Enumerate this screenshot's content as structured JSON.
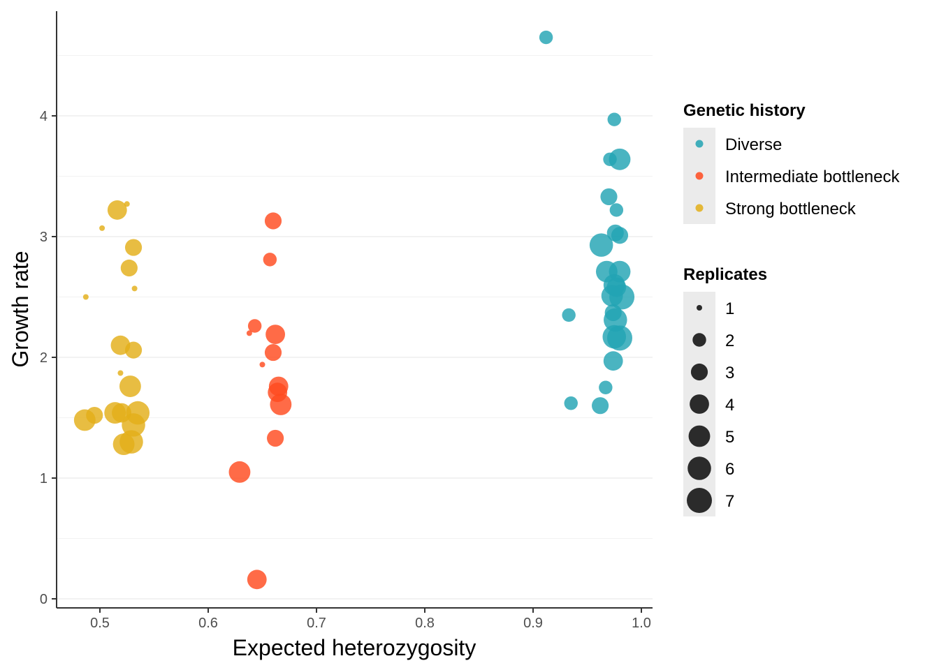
{
  "chart_data": {
    "type": "scatter",
    "xlabel": "Expected heterozygosity",
    "ylabel": "Growth rate",
    "xlim": [
      0.46,
      1.01
    ],
    "ylim": [
      -0.07,
      4.78
    ],
    "xticks": [
      "0.5",
      "0.6",
      "0.7",
      "0.8",
      "0.9",
      "1.0"
    ],
    "yticks": [
      "0",
      "1",
      "2",
      "3",
      "4"
    ],
    "grid": "horizontal major and minor",
    "legend_position": "right",
    "legends": {
      "color": {
        "title": "Genetic history",
        "entries": [
          "Diverse",
          "Intermediate bottleneck",
          "Strong bottleneck"
        ]
      },
      "size": {
        "title": "Replicates",
        "entries": [
          "1",
          "2",
          "3",
          "4",
          "5",
          "6",
          "7"
        ]
      }
    },
    "series": [
      {
        "name": "Diverse",
        "color": "#22A3B3",
        "points": [
          {
            "x": 0.912,
            "y": 4.65,
            "size": 2
          },
          {
            "x": 0.975,
            "y": 3.97,
            "size": 2
          },
          {
            "x": 0.971,
            "y": 3.64,
            "size": 2
          },
          {
            "x": 0.98,
            "y": 3.64,
            "size": 5
          },
          {
            "x": 0.97,
            "y": 3.33,
            "size": 3
          },
          {
            "x": 0.977,
            "y": 3.22,
            "size": 2
          },
          {
            "x": 0.976,
            "y": 3.03,
            "size": 3
          },
          {
            "x": 0.98,
            "y": 3.01,
            "size": 3
          },
          {
            "x": 0.963,
            "y": 2.93,
            "size": 6
          },
          {
            "x": 0.968,
            "y": 2.71,
            "size": 5
          },
          {
            "x": 0.98,
            "y": 2.71,
            "size": 5
          },
          {
            "x": 0.975,
            "y": 2.6,
            "size": 5
          },
          {
            "x": 0.977,
            "y": 2.58,
            "size": 4
          },
          {
            "x": 0.973,
            "y": 2.51,
            "size": 5
          },
          {
            "x": 0.982,
            "y": 2.5,
            "size": 7
          },
          {
            "x": 0.974,
            "y": 2.37,
            "size": 3
          },
          {
            "x": 0.933,
            "y": 2.35,
            "size": 2
          },
          {
            "x": 0.976,
            "y": 2.31,
            "size": 6
          },
          {
            "x": 0.975,
            "y": 2.17,
            "size": 6
          },
          {
            "x": 0.98,
            "y": 2.16,
            "size": 7
          },
          {
            "x": 0.974,
            "y": 1.97,
            "size": 4
          },
          {
            "x": 0.967,
            "y": 1.75,
            "size": 2
          },
          {
            "x": 0.935,
            "y": 1.62,
            "size": 2
          },
          {
            "x": 0.962,
            "y": 1.6,
            "size": 3
          }
        ]
      },
      {
        "name": "Intermediate bottleneck",
        "color": "#FF4A1F",
        "points": [
          {
            "x": 0.66,
            "y": 3.13,
            "size": 3
          },
          {
            "x": 0.657,
            "y": 2.81,
            "size": 2
          },
          {
            "x": 0.643,
            "y": 2.26,
            "size": 2
          },
          {
            "x": 0.638,
            "y": 2.2,
            "size": 1
          },
          {
            "x": 0.662,
            "y": 2.19,
            "size": 4
          },
          {
            "x": 0.66,
            "y": 2.04,
            "size": 3
          },
          {
            "x": 0.65,
            "y": 1.94,
            "size": 1
          },
          {
            "x": 0.665,
            "y": 1.76,
            "size": 4
          },
          {
            "x": 0.664,
            "y": 1.71,
            "size": 4
          },
          {
            "x": 0.667,
            "y": 1.61,
            "size": 5
          },
          {
            "x": 0.662,
            "y": 1.33,
            "size": 3
          },
          {
            "x": 0.629,
            "y": 1.05,
            "size": 5
          },
          {
            "x": 0.645,
            "y": 0.16,
            "size": 4
          }
        ]
      },
      {
        "name": "Strong bottleneck",
        "color": "#E3AF19",
        "points": [
          {
            "x": 0.525,
            "y": 3.27,
            "size": 1
          },
          {
            "x": 0.516,
            "y": 3.22,
            "size": 4
          },
          {
            "x": 0.502,
            "y": 3.07,
            "size": 1
          },
          {
            "x": 0.531,
            "y": 2.91,
            "size": 3
          },
          {
            "x": 0.527,
            "y": 2.74,
            "size": 3
          },
          {
            "x": 0.532,
            "y": 2.57,
            "size": 1
          },
          {
            "x": 0.487,
            "y": 2.5,
            "size": 1
          },
          {
            "x": 0.519,
            "y": 2.1,
            "size": 4
          },
          {
            "x": 0.531,
            "y": 2.06,
            "size": 3
          },
          {
            "x": 0.519,
            "y": 1.87,
            "size": 1
          },
          {
            "x": 0.528,
            "y": 1.76,
            "size": 5
          },
          {
            "x": 0.514,
            "y": 1.54,
            "size": 5
          },
          {
            "x": 0.52,
            "y": 1.54,
            "size": 4
          },
          {
            "x": 0.535,
            "y": 1.54,
            "size": 6
          },
          {
            "x": 0.495,
            "y": 1.52,
            "size": 3
          },
          {
            "x": 0.486,
            "y": 1.48,
            "size": 5
          },
          {
            "x": 0.531,
            "y": 1.44,
            "size": 6
          },
          {
            "x": 0.529,
            "y": 1.3,
            "size": 6
          },
          {
            "x": 0.522,
            "y": 1.28,
            "size": 5
          }
        ]
      }
    ]
  }
}
